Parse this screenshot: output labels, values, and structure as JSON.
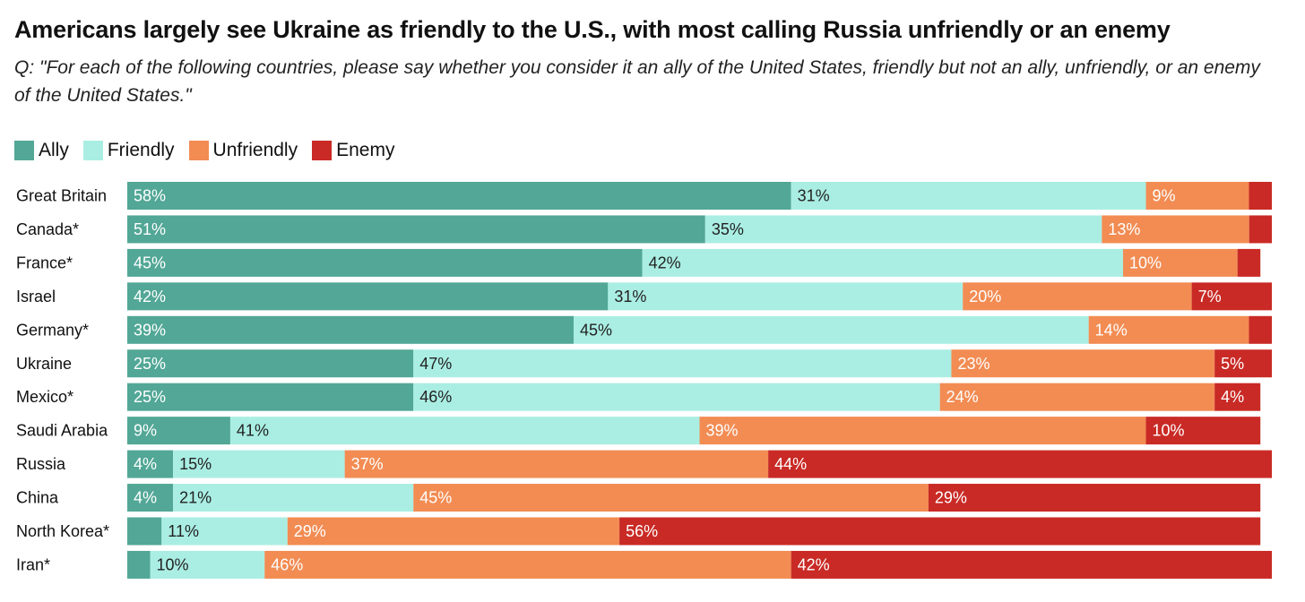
{
  "title": "Americans largely see Ukraine as friendly to the U.S., with most calling Russia unfriendly or an enemy",
  "subtitle": "Q: \"For each of the following countries, please say whether you consider it an ally of the United States, friendly but not an ally, unfriendly, or an enemy of the United States.\"",
  "legend": [
    {
      "name": "Ally",
      "color": "#52a796"
    },
    {
      "name": "Friendly",
      "color": "#aaeee3"
    },
    {
      "name": "Unfriendly",
      "color": "#f28c53"
    },
    {
      "name": "Enemy",
      "color": "#c92a25"
    }
  ],
  "chart_data": {
    "type": "bar",
    "orientation": "horizontal",
    "stacked": true,
    "unit": "%",
    "categories": [
      "Great Britain",
      "Canada*",
      "France*",
      "Israel",
      "Germany*",
      "Ukraine",
      "Mexico*",
      "Saudi Arabia",
      "Russia",
      "China",
      "North Korea*",
      "Iran*"
    ],
    "series": [
      {
        "name": "Ally",
        "color": "#52a796",
        "label_color": "#ffffff",
        "values": [
          58,
          51,
          45,
          42,
          39,
          25,
          25,
          9,
          4,
          4,
          3,
          2
        ]
      },
      {
        "name": "Friendly",
        "color": "#aaeee3",
        "label_color": "#222222",
        "values": [
          31,
          35,
          42,
          31,
          45,
          47,
          46,
          41,
          15,
          21,
          11,
          10
        ]
      },
      {
        "name": "Unfriendly",
        "color": "#f28c53",
        "label_color": "#ffffff",
        "values": [
          9,
          13,
          10,
          20,
          14,
          23,
          24,
          39,
          37,
          45,
          29,
          46
        ]
      },
      {
        "name": "Enemy",
        "color": "#c92a25",
        "label_color": "#ffffff",
        "values": [
          2,
          2,
          2,
          7,
          2,
          5,
          4,
          10,
          44,
          29,
          56,
          42
        ]
      }
    ],
    "labels": [
      [
        "58%",
        "51%",
        "45%",
        "42%",
        "39%",
        "25%",
        "25%",
        "9%",
        "4%",
        "4%",
        "",
        ""
      ],
      [
        "31%",
        "35%",
        "42%",
        "31%",
        "45%",
        "47%",
        "46%",
        "41%",
        "15%",
        "21%",
        "11%",
        "10%"
      ],
      [
        "9%",
        "13%",
        "10%",
        "20%",
        "14%",
        "23%",
        "24%",
        "39%",
        "37%",
        "45%",
        "29%",
        "46%"
      ],
      [
        "",
        "",
        "",
        "7%",
        "",
        "5%",
        "4%",
        "10%",
        "44%",
        "29%",
        "56%",
        "42%"
      ]
    ],
    "xlim": [
      0,
      100
    ]
  }
}
